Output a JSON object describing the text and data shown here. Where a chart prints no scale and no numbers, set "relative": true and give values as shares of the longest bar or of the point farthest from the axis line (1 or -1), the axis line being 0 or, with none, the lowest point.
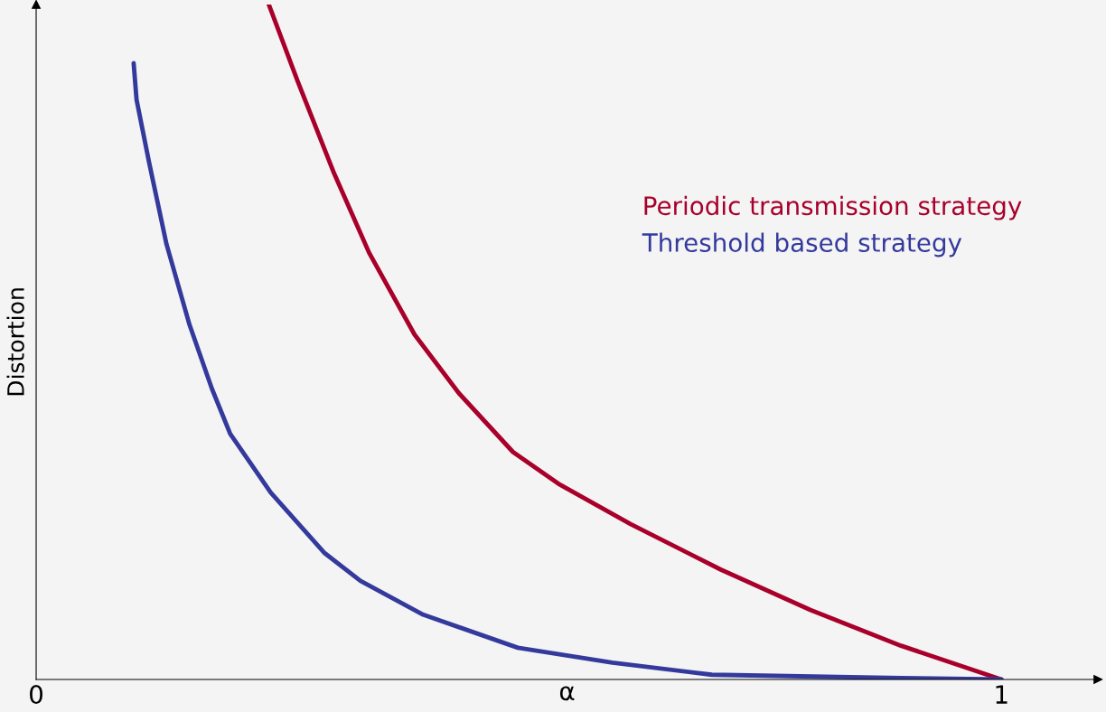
{
  "chart_data": {
    "type": "line",
    "relative": true,
    "xlabel": "α",
    "ylabel": "Distortion",
    "xlim": [
      0,
      1.1
    ],
    "xticks": [
      0,
      1
    ],
    "tick_labels": "x",
    "grid": false,
    "legend": "top right",
    "marker": "none",
    "line_style": "solid",
    "series": [
      {
        "name": "Periodic transmission strategy",
        "color": "#a8002a",
        "x": [
          0.241,
          0.271,
          0.308,
          0.345,
          0.392,
          0.438,
          0.494,
          0.541,
          0.616,
          0.709,
          0.802,
          0.896,
          1.0
        ],
        "values": [
          1.0,
          0.886,
          0.752,
          0.632,
          0.511,
          0.424,
          0.337,
          0.29,
          0.23,
          0.163,
          0.103,
          0.05,
          0
        ]
      },
      {
        "name": "Threshold based strategy",
        "color": "#343a9c",
        "x": [
          0.101,
          0.104,
          0.117,
          0.135,
          0.159,
          0.182,
          0.201,
          0.243,
          0.299,
          0.336,
          0.401,
          0.499,
          0.597,
          0.7,
          0.896,
          1.0
        ],
        "values": [
          0.913,
          0.859,
          0.766,
          0.645,
          0.525,
          0.431,
          0.364,
          0.277,
          0.187,
          0.146,
          0.096,
          0.047,
          0.025,
          0.007,
          0.002,
          0
        ]
      }
    ]
  }
}
